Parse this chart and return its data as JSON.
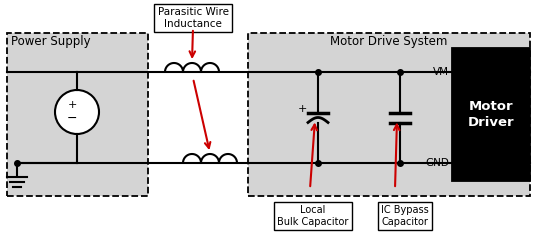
{
  "bg_color": "#ffffff",
  "gray_fill": "#d4d4d4",
  "black_fill": "#000000",
  "red_color": "#cc0000",
  "line_color": "#000000",
  "text_color": "#000000",
  "white_color": "#ffffff",
  "power_supply_label": "Power Supply",
  "motor_drive_label": "Motor Drive System",
  "parasitic_label": "Parasitic Wire\nInductance",
  "motor_driver_label": "Motor\nDriver",
  "vm_label": "VM",
  "gnd_label": "GND",
  "plus_label": "+",
  "local_cap_label": "Local\nBulk Capacitor",
  "ic_bypass_label": "IC Bypass\nCapacitor",
  "fig_w": 5.37,
  "fig_h": 2.33,
  "dpi": 100
}
